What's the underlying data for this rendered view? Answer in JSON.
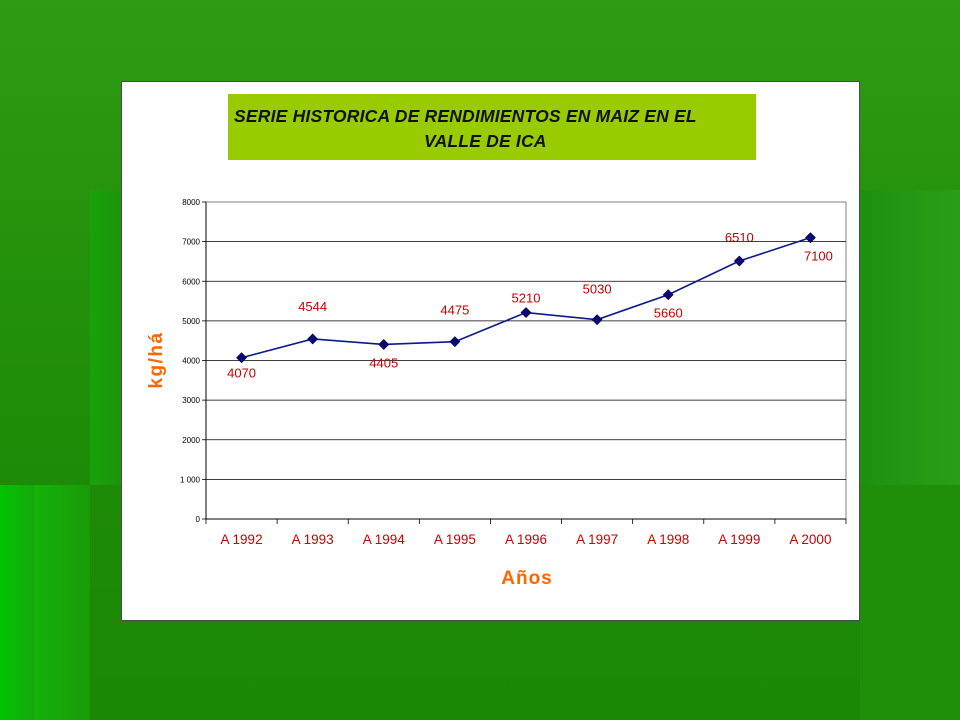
{
  "colors": {
    "background_green": "#1f8c08",
    "title_fill": "#99cc00",
    "series_line": "#0a1a8c",
    "marker": "#0a0a78",
    "data_label": "#cc0000",
    "axis_title": "#ff6600"
  },
  "chart_data": {
    "type": "line",
    "title_line1": "SERIE HISTORICA DE RENDIMIENTOS EN MAIZ EN EL",
    "title_line2": "VALLE DE ICA",
    "xlabel": "Años",
    "ylabel": "kg/há",
    "categories": [
      "A 1992",
      "A 1993",
      "A 1994",
      "A 1995",
      "A 1996",
      "A 1997",
      "A 1998",
      "A 1999",
      "A 2000"
    ],
    "values": [
      4070,
      4544,
      4405,
      4475,
      5210,
      5030,
      5660,
      6510,
      7100
    ],
    "data_labels": [
      "4070",
      "4544",
      "4405",
      "4475",
      "5210",
      "5030",
      "5660",
      "6510",
      "7100"
    ],
    "y_ticks": [
      "0",
      "1 000",
      "2000",
      "3000",
      "4000",
      "5000",
      "6000",
      "7000",
      "8000"
    ],
    "ylim": [
      0,
      8000
    ],
    "grid": true,
    "legend": "none"
  }
}
